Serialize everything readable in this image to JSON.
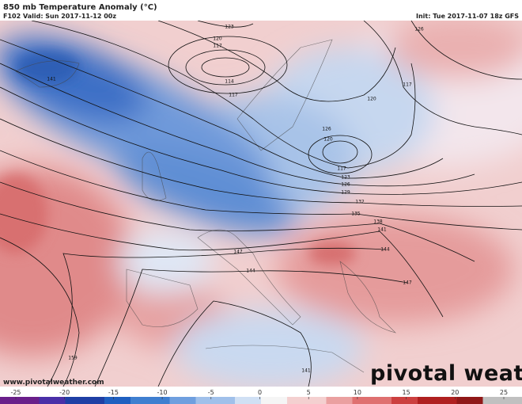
{
  "header": {
    "title": "850 mb Temperature Anomaly (°C)",
    "valid": "F102 Valid: Sun 2017-11-12 00z",
    "init": "Init: Tue 2017-11-07 18z GFS"
  },
  "contour_labels": [
    "123",
    "120",
    "117",
    "114",
    "117",
    "141",
    "117",
    "120",
    "126",
    "120",
    "117",
    "123",
    "126",
    "129",
    "132",
    "135",
    "138",
    "141",
    "144",
    "147",
    "144",
    "147",
    "159",
    "141",
    "126"
  ],
  "website": "www.pivotalweather.com",
  "watermark": "pivotal weather",
  "colorbar": {
    "ticks": [
      -25,
      -20,
      -15,
      -10,
      -5,
      0,
      5,
      10,
      15,
      20,
      25
    ],
    "range": [
      -25,
      25
    ]
  }
}
